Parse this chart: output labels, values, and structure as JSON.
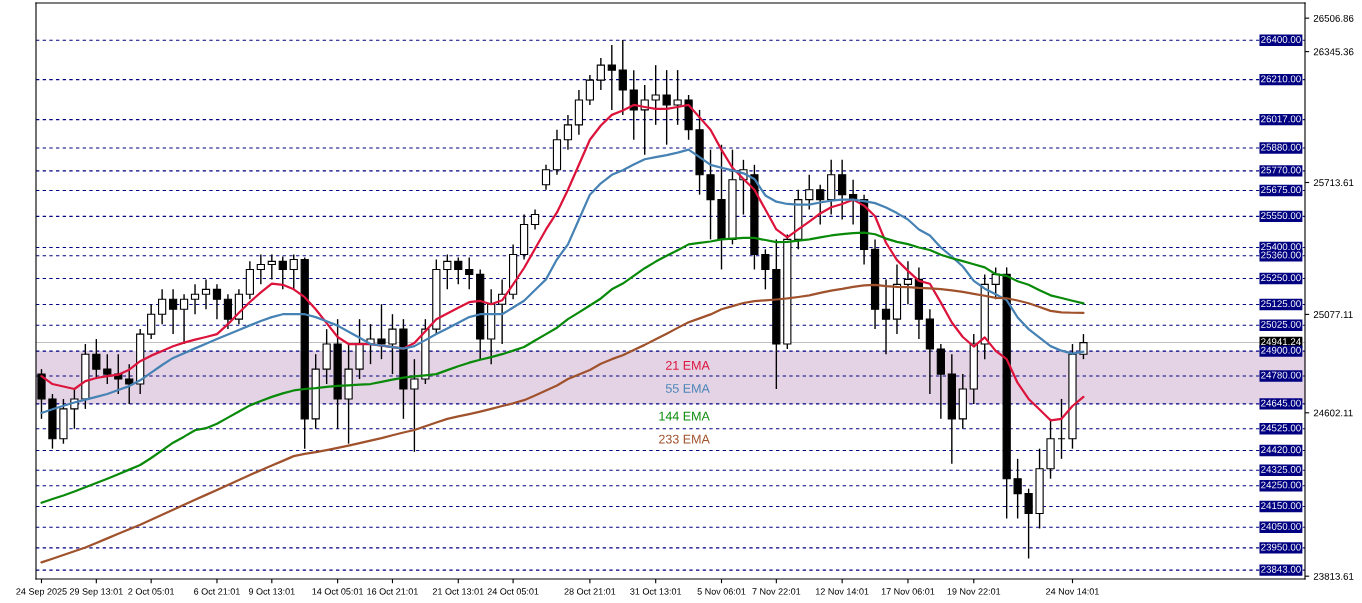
{
  "chart_data": {
    "type": "candlestick",
    "categories": [
      "24 Sep 2025",
      null,
      null,
      null,
      null,
      "29 Sep 13:01",
      null,
      null,
      null,
      null,
      "2 Oct 05:01",
      null,
      null,
      null,
      null,
      null,
      "6 Oct 21:01",
      null,
      null,
      null,
      null,
      "9 Oct 13:01",
      null,
      null,
      null,
      null,
      null,
      "14 Oct 05:01",
      null,
      null,
      null,
      null,
      "16 Oct 21:01",
      null,
      null,
      null,
      null,
      null,
      "21 Oct 13:01",
      null,
      null,
      null,
      null,
      "24 Oct 05:01",
      null,
      null,
      null,
      null,
      null,
      null,
      "28 Oct 21:01",
      null,
      null,
      null,
      null,
      null,
      "31 Oct 13:01",
      null,
      null,
      null,
      null,
      null,
      "5 Nov 06:01",
      null,
      null,
      null,
      null,
      "7 Nov 22:01",
      null,
      null,
      null,
      null,
      null,
      "12 Nov 14:01",
      null,
      null,
      null,
      null,
      null,
      "17 Nov 06:01",
      null,
      null,
      null,
      null,
      null,
      "19 Nov 22:01",
      null,
      null,
      null,
      null,
      null,
      null,
      null,
      null,
      "24 Nov 14:01",
      null
    ],
    "ohlc": [
      [
        24789,
        24813,
        24573,
        24669
      ],
      [
        24669,
        24693,
        24429,
        24477
      ],
      [
        24477,
        24669,
        24453,
        24621
      ],
      [
        24621,
        24717,
        24525,
        24669
      ],
      [
        24669,
        24934,
        24621,
        24885
      ],
      [
        24885,
        24958,
        24765,
        24813
      ],
      [
        24813,
        24885,
        24741,
        24789
      ],
      [
        24789,
        24885,
        24693,
        24765
      ],
      [
        24765,
        24837,
        24645,
        24741
      ],
      [
        24741,
        25006,
        24693,
        24982
      ],
      [
        24982,
        25126,
        24958,
        25078
      ],
      [
        25078,
        25198,
        25030,
        25150
      ],
      [
        25150,
        25198,
        24982,
        25102
      ],
      [
        25102,
        25174,
        24934,
        25150
      ],
      [
        25150,
        25222,
        25078,
        25174
      ],
      [
        25174,
        25246,
        25102,
        25198
      ],
      [
        25198,
        25222,
        25054,
        25150
      ],
      [
        25150,
        25174,
        25006,
        25054
      ],
      [
        25054,
        25198,
        25030,
        25174
      ],
      [
        25174,
        25333,
        25150,
        25294
      ],
      [
        25294,
        25366,
        25222,
        25318
      ],
      [
        25318,
        25366,
        25246,
        25333
      ],
      [
        25333,
        25357,
        25198,
        25294
      ],
      [
        25294,
        25366,
        25198,
        25342
      ],
      [
        25342,
        25352,
        24429,
        24573
      ],
      [
        24573,
        24885,
        24525,
        24813
      ],
      [
        24813,
        25006,
        24741,
        24934
      ],
      [
        24934,
        25054,
        24525,
        24669
      ],
      [
        24669,
        24934,
        24453,
        24813
      ],
      [
        24813,
        25054,
        24765,
        24934
      ],
      [
        24934,
        25030,
        24837,
        24958
      ],
      [
        24958,
        25126,
        24861,
        24934
      ],
      [
        24934,
        25078,
        24789,
        25006
      ],
      [
        25006,
        25054,
        24573,
        24717
      ],
      [
        24717,
        24861,
        24414,
        24765
      ],
      [
        24765,
        25054,
        24741,
        25006
      ],
      [
        25006,
        25342,
        24982,
        25294
      ],
      [
        25294,
        25366,
        25198,
        25333
      ],
      [
        25333,
        25352,
        25222,
        25294
      ],
      [
        25294,
        25352,
        25198,
        25270
      ],
      [
        25270,
        25294,
        24861,
        24958
      ],
      [
        24958,
        25198,
        24837,
        25126
      ],
      [
        25126,
        25246,
        24934,
        25174
      ],
      [
        25174,
        25415,
        25150,
        25366
      ],
      [
        25366,
        25559,
        25342,
        25511
      ],
      [
        25511,
        25583,
        25487,
        25559
      ],
      [
        25703,
        25799,
        25679,
        25775
      ],
      [
        25775,
        25968,
        25751,
        25920
      ],
      [
        25920,
        26040,
        25872,
        25992
      ],
      [
        25992,
        26160,
        25944,
        26112
      ],
      [
        26112,
        26232,
        26088,
        26208
      ],
      [
        26208,
        26314,
        26160,
        26280
      ],
      [
        26280,
        26377,
        26064,
        26256
      ],
      [
        26256,
        26401,
        26040,
        26160
      ],
      [
        26160,
        26256,
        25920,
        26064
      ],
      [
        26064,
        26184,
        25848,
        26112
      ],
      [
        26112,
        26280,
        25992,
        26136
      ],
      [
        26136,
        26256,
        25896,
        26088
      ],
      [
        26088,
        26256,
        25992,
        26112
      ],
      [
        26112,
        26136,
        25920,
        25968
      ],
      [
        25968,
        26064,
        25655,
        25751
      ],
      [
        25751,
        25872,
        25439,
        25631
      ],
      [
        25631,
        25896,
        25294,
        25439
      ],
      [
        25439,
        25872,
        25415,
        25727
      ],
      [
        25727,
        25823,
        25559,
        25775
      ],
      [
        25751,
        25799,
        25294,
        25366
      ],
      [
        25366,
        25391,
        25198,
        25294
      ],
      [
        25294,
        25439,
        24717,
        24934
      ],
      [
        24934,
        25463,
        24910,
        25439
      ],
      [
        25439,
        25679,
        25391,
        25631
      ],
      [
        25631,
        25751,
        25583,
        25679
      ],
      [
        25679,
        25703,
        25511,
        25631
      ],
      [
        25631,
        25823,
        25559,
        25751
      ],
      [
        25751,
        25823,
        25535,
        25655
      ],
      [
        25655,
        25727,
        25511,
        25631
      ],
      [
        25631,
        25655,
        25318,
        25391
      ],
      [
        25391,
        25439,
        25006,
        25102
      ],
      [
        25102,
        25246,
        24885,
        25054
      ],
      [
        25054,
        25318,
        24982,
        25222
      ],
      [
        25222,
        25333,
        25126,
        25246
      ],
      [
        25246,
        25304,
        24958,
        25054
      ],
      [
        25054,
        25102,
        24693,
        24910
      ],
      [
        24910,
        24934,
        24573,
        24789
      ],
      [
        24789,
        24885,
        24356,
        24573
      ],
      [
        24573,
        24789,
        24525,
        24717
      ],
      [
        24717,
        24982,
        24645,
        24934
      ],
      [
        24934,
        25270,
        24861,
        25222
      ],
      [
        25222,
        25304,
        25150,
        25270
      ],
      [
        25270,
        25304,
        24092,
        24284
      ],
      [
        24284,
        24380,
        24092,
        24212
      ],
      [
        24212,
        24236,
        23899,
        24116
      ],
      [
        24116,
        24429,
        24044,
        24332
      ],
      [
        24332,
        24573,
        24284,
        24477
      ],
      [
        24477,
        24669,
        24380,
        24477
      ],
      [
        24477,
        24934,
        24429,
        24885
      ],
      [
        24885,
        24982,
        24861,
        24941
      ]
    ],
    "series": [
      {
        "name": "21 EMA",
        "type": "line",
        "color": "#dc143c",
        "values": [
          24779,
          24741,
          24729,
          24717,
          24755,
          24770,
          24779,
          24786,
          24810,
          24851,
          24878,
          24900,
          24923,
          24941,
          24955,
          24968,
          24982,
          25030,
          25085,
          25137,
          25183,
          25226,
          25220,
          25198,
          25160,
          25102,
          25035,
          24968,
          24934,
          24934,
          24934,
          24926,
          24919,
          24912,
          24939,
          24996,
          25054,
          25081,
          25109,
          25136,
          25142,
          25126,
          25145,
          25222,
          25301,
          25394,
          25487,
          25569,
          25679,
          25799,
          25920,
          25989,
          26040,
          26061,
          26088,
          26078,
          26069,
          26069,
          26078,
          26088,
          26028,
          25968,
          25871,
          25785,
          25731,
          25679,
          25583,
          25487,
          25449,
          25487,
          25525,
          25564,
          25594,
          25610,
          25631,
          25602,
          25551,
          25423,
          25339,
          25287,
          25239,
          25225,
          25134,
          25038,
          24968,
          24922,
          24966,
          24901,
          24861,
          24746,
          24669,
          24618,
          24566,
          24573,
          24635,
          24679
        ]
      },
      {
        "name": "55 EMA",
        "type": "line",
        "color": "#4682b4",
        "values": [
          24601,
          24619,
          24636,
          24652,
          24666,
          24679,
          24693,
          24712,
          24731,
          24759,
          24796,
          24833,
          24867,
          24890,
          24913,
          24935,
          24958,
          24980,
          25002,
          25024,
          25045,
          25064,
          25078,
          25078,
          25078,
          25064,
          25044,
          25023,
          24993,
          24964,
          24934,
          24927,
          24919,
          24912,
          24924,
          24953,
          24982,
          25009,
          25037,
          25064,
          25078,
          25078,
          25078,
          25110,
          25143,
          25195,
          25246,
          25343,
          25415,
          25535,
          25655,
          25710,
          25751,
          25773,
          25801,
          25826,
          25836,
          25846,
          25858,
          25872,
          25836,
          25799,
          25785,
          25772,
          25758,
          25731,
          25651,
          25621,
          25610,
          25607,
          25607,
          25617,
          25626,
          25631,
          25631,
          25624,
          25614,
          25593,
          25566,
          25535,
          25487,
          25458,
          25400,
          25356,
          25308,
          25239,
          25201,
          25174,
          25146,
          25062,
          25006,
          24965,
          24924,
          24902,
          24888,
          24897
        ]
      },
      {
        "name": "144 EMA",
        "type": "line",
        "color": "#0a8a0a",
        "values": [
          24168,
          24186,
          24203,
          24222,
          24243,
          24263,
          24284,
          24306,
          24328,
          24350,
          24384,
          24421,
          24458,
          24487,
          24518,
          24528,
          24549,
          24579,
          24608,
          24638,
          24659,
          24679,
          24696,
          24710,
          24717,
          24721,
          24727,
          24732,
          24735,
          24738,
          24741,
          24751,
          24762,
          24772,
          24778,
          24783,
          24789,
          24808,
          24827,
          24844,
          24858,
          24871,
          24885,
          24902,
          24920,
          24951,
          24982,
          25013,
          25054,
          25087,
          25120,
          25154,
          25198,
          25226,
          25263,
          25300,
          25332,
          25360,
          25387,
          25415,
          25422,
          25429,
          25439,
          25443,
          25446,
          25446,
          25436,
          25426,
          25427,
          25433,
          25439,
          25449,
          25458,
          25464,
          25469,
          25472,
          25464,
          25443,
          25427,
          25416,
          25400,
          25388,
          25365,
          25348,
          25334,
          25319,
          25304,
          25271,
          25263,
          25237,
          25220,
          25194,
          25169,
          25156,
          25143,
          25130
        ]
      },
      {
        "name": "233 EMA",
        "type": "line",
        "color": "#a0522d",
        "values": [
          23880,
          23898,
          23916,
          23934,
          23952,
          23974,
          23996,
          24018,
          24040,
          24062,
          24086,
          24110,
          24134,
          24158,
          24182,
          24206,
          24230,
          24254,
          24278,
          24302,
          24325,
          24348,
          24370,
          24393,
          24404,
          24412,
          24422,
          24433,
          24444,
          24456,
          24468,
          24480,
          24494,
          24507,
          24519,
          24537,
          24555,
          24573,
          24585,
          24596,
          24608,
          24621,
          24635,
          24648,
          24663,
          24686,
          24710,
          24734,
          24765,
          24787,
          24809,
          24839,
          24861,
          24880,
          24905,
          24930,
          24957,
          24984,
          25012,
          25039,
          25058,
          25077,
          25102,
          25117,
          25132,
          25141,
          25145,
          25149,
          25154,
          25161,
          25169,
          25181,
          25192,
          25200,
          25210,
          25217,
          25220,
          25214,
          25210,
          25209,
          25205,
          25203,
          25199,
          25193,
          25186,
          25176,
          25167,
          25157,
          25155,
          25144,
          25131,
          25113,
          25094,
          25087,
          25085,
          25084
        ]
      }
    ],
    "ylim": [
      23800,
      26580
    ],
    "yticks": [
      {
        "value": 26506.86,
        "label": "26506.86"
      },
      {
        "value": 26345.36,
        "label": "26345.36"
      },
      {
        "value": 25713.61,
        "label": "25713.61"
      },
      {
        "value": 25077.11,
        "label": "25077.11"
      },
      {
        "value": 24602.11,
        "label": "24602.11"
      },
      {
        "value": 23813.61,
        "label": "23813.61"
      }
    ],
    "ref_lines": [
      {
        "axis": "y",
        "value": 26400,
        "label": "26400.00",
        "color": "#000080",
        "line_style": "dashed"
      },
      {
        "axis": "y",
        "value": 26210,
        "label": "26210.00",
        "color": "#000080",
        "line_style": "dashed"
      },
      {
        "axis": "y",
        "value": 26017,
        "label": "26017.00",
        "color": "#000080",
        "line_style": "dashed"
      },
      {
        "axis": "y",
        "value": 25880,
        "label": "25880.00",
        "color": "#000080",
        "line_style": "dashed"
      },
      {
        "axis": "y",
        "value": 25770,
        "label": "25770.00",
        "color": "#000080",
        "line_style": "dashed"
      },
      {
        "axis": "y",
        "value": 25675,
        "label": "25675.00",
        "color": "#000080",
        "line_style": "dashed"
      },
      {
        "axis": "y",
        "value": 25550,
        "label": "25550.00",
        "color": "#000080",
        "line_style": "dashed"
      },
      {
        "axis": "y",
        "value": 25400,
        "label": "25400.00",
        "color": "#000080",
        "line_style": "dashed"
      },
      {
        "axis": "y",
        "value": 25360,
        "label": "25360.00",
        "color": "#000080",
        "line_style": "dashed"
      },
      {
        "axis": "y",
        "value": 25250,
        "label": "25250.00",
        "color": "#000080",
        "line_style": "dashed"
      },
      {
        "axis": "y",
        "value": 25125,
        "label": "25125.00",
        "color": "#000080",
        "line_style": "dashed"
      },
      {
        "axis": "y",
        "value": 25025,
        "label": "25025.00",
        "color": "#000080",
        "line_style": "dashed"
      },
      {
        "axis": "y",
        "value": 24941.24,
        "label": "24941.24",
        "color": "#c0c0c0",
        "line_style": "solid"
      },
      {
        "axis": "y",
        "value": 24900,
        "label": "24900.00",
        "color": "#000080",
        "line_style": "dashed"
      },
      {
        "axis": "y",
        "value": 24780,
        "label": "24780.00",
        "color": "#000080",
        "line_style": "dashed"
      },
      {
        "axis": "y",
        "value": 24645,
        "label": "24645.00",
        "color": "#000080",
        "line_style": "dashed"
      },
      {
        "axis": "y",
        "value": 24525,
        "label": "24525.00",
        "color": "#000080",
        "line_style": "dashed"
      },
      {
        "axis": "y",
        "value": 24420,
        "label": "24420.00",
        "color": "#000080",
        "line_style": "dashed"
      },
      {
        "axis": "y",
        "value": 24325,
        "label": "24325.00",
        "color": "#000080",
        "line_style": "dashed"
      },
      {
        "axis": "y",
        "value": 24250,
        "label": "24250.00",
        "color": "#000080",
        "line_style": "dashed"
      },
      {
        "axis": "y",
        "value": 24150,
        "label": "24150.00",
        "color": "#000080",
        "line_style": "dashed"
      },
      {
        "axis": "y",
        "value": 24050,
        "label": "24050.00",
        "color": "#000080",
        "line_style": "dashed"
      },
      {
        "axis": "y",
        "value": 23950,
        "label": "23950.00",
        "color": "#000080",
        "line_style": "dashed"
      },
      {
        "axis": "y",
        "value": 23843,
        "label": "23843.00",
        "color": "#000080",
        "line_style": "dashed"
      }
    ],
    "bands": [
      {
        "axis": "y",
        "from": 24645,
        "to": 24900,
        "color": "#d8c0da"
      }
    ],
    "grid": false,
    "legend": false
  }
}
